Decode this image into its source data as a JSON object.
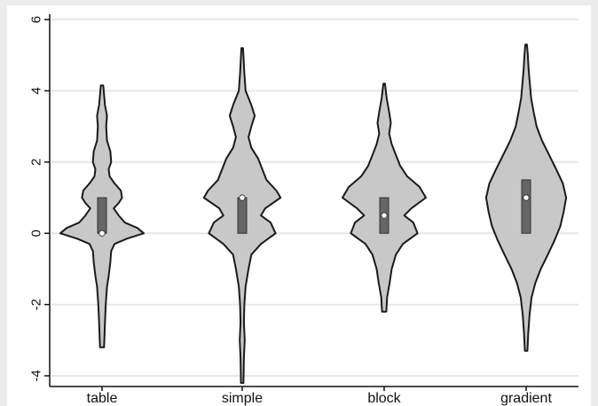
{
  "chart_data": {
    "type": "violin",
    "title": "",
    "xlabel": "",
    "ylabel": "",
    "ylim": [
      -4.3,
      6.3
    ],
    "yticks": [
      -4,
      -2,
      0,
      2,
      4,
      6
    ],
    "ytick_labels": [
      "-4",
      "-2",
      "0",
      "2",
      "4",
      "6"
    ],
    "grid": true,
    "categories": [
      "table",
      "simple",
      "block",
      "gradient"
    ],
    "colors": {
      "violin_fill": "#c8c8c8",
      "violin_stroke": "#1a1a1a",
      "box_fill": "#666666",
      "median_marker": "#ffffff",
      "grid": "#e6e6e6"
    },
    "box_stats": [
      {
        "q1": 0.0,
        "median": 0.0,
        "q3": 1.0
      },
      {
        "q1": 0.0,
        "median": 1.0,
        "q3": 1.0
      },
      {
        "q1": 0.0,
        "median": 0.5,
        "q3": 1.0
      },
      {
        "q1": 0.0,
        "median": 1.0,
        "q3": 1.5
      }
    ],
    "violins": [
      {
        "name": "table",
        "y_min": -3.2,
        "y_max": 4.15,
        "density": [
          [
            -3.2,
            0.05
          ],
          [
            -2.5,
            0.07
          ],
          [
            -2.0,
            0.09
          ],
          [
            -1.5,
            0.12
          ],
          [
            -1.2,
            0.16
          ],
          [
            -0.8,
            0.2
          ],
          [
            -0.5,
            0.22
          ],
          [
            -0.3,
            0.3
          ],
          [
            -0.15,
            0.6
          ],
          [
            0.0,
            1.0
          ],
          [
            0.15,
            0.85
          ],
          [
            0.3,
            0.55
          ],
          [
            0.5,
            0.4
          ],
          [
            0.7,
            0.28
          ],
          [
            0.85,
            0.4
          ],
          [
            1.0,
            0.48
          ],
          [
            1.2,
            0.45
          ],
          [
            1.4,
            0.3
          ],
          [
            1.6,
            0.18
          ],
          [
            1.8,
            0.16
          ],
          [
            2.0,
            0.22
          ],
          [
            2.3,
            0.2
          ],
          [
            2.6,
            0.12
          ],
          [
            3.0,
            0.1
          ],
          [
            3.3,
            0.12
          ],
          [
            3.6,
            0.07
          ],
          [
            4.15,
            0.03
          ]
        ]
      },
      {
        "name": "simple",
        "y_min": -4.2,
        "y_max": 5.2,
        "density": [
          [
            -4.2,
            0.03
          ],
          [
            -3.5,
            0.04
          ],
          [
            -3.0,
            0.06
          ],
          [
            -2.5,
            0.04
          ],
          [
            -2.0,
            0.05
          ],
          [
            -1.5,
            0.08
          ],
          [
            -1.0,
            0.15
          ],
          [
            -0.6,
            0.22
          ],
          [
            -0.3,
            0.45
          ],
          [
            0.0,
            0.8
          ],
          [
            0.3,
            0.68
          ],
          [
            0.5,
            0.45
          ],
          [
            0.7,
            0.55
          ],
          [
            1.0,
            0.92
          ],
          [
            1.2,
            0.82
          ],
          [
            1.5,
            0.58
          ],
          [
            1.8,
            0.48
          ],
          [
            2.1,
            0.38
          ],
          [
            2.4,
            0.22
          ],
          [
            2.7,
            0.15
          ],
          [
            3.0,
            0.22
          ],
          [
            3.3,
            0.3
          ],
          [
            3.6,
            0.22
          ],
          [
            4.0,
            0.08
          ],
          [
            4.5,
            0.05
          ],
          [
            5.2,
            0.02
          ]
        ]
      },
      {
        "name": "block",
        "y_min": -2.2,
        "y_max": 4.2,
        "density": [
          [
            -2.2,
            0.05
          ],
          [
            -1.8,
            0.07
          ],
          [
            -1.4,
            0.13
          ],
          [
            -1.0,
            0.18
          ],
          [
            -0.6,
            0.28
          ],
          [
            -0.3,
            0.45
          ],
          [
            0.0,
            0.8
          ],
          [
            0.3,
            0.7
          ],
          [
            0.5,
            0.48
          ],
          [
            0.7,
            0.65
          ],
          [
            1.0,
            1.0
          ],
          [
            1.3,
            0.85
          ],
          [
            1.6,
            0.55
          ],
          [
            1.9,
            0.38
          ],
          [
            2.2,
            0.28
          ],
          [
            2.5,
            0.18
          ],
          [
            2.8,
            0.12
          ],
          [
            3.1,
            0.16
          ],
          [
            3.4,
            0.12
          ],
          [
            3.8,
            0.06
          ],
          [
            4.2,
            0.02
          ]
        ]
      },
      {
        "name": "gradient",
        "y_min": -3.3,
        "y_max": 5.3,
        "density": [
          [
            -3.3,
            0.03
          ],
          [
            -2.8,
            0.05
          ],
          [
            -2.3,
            0.08
          ],
          [
            -1.8,
            0.13
          ],
          [
            -1.4,
            0.22
          ],
          [
            -1.0,
            0.35
          ],
          [
            -0.6,
            0.52
          ],
          [
            -0.2,
            0.68
          ],
          [
            0.2,
            0.82
          ],
          [
            0.6,
            0.9
          ],
          [
            1.0,
            0.96
          ],
          [
            1.4,
            0.88
          ],
          [
            1.8,
            0.72
          ],
          [
            2.2,
            0.55
          ],
          [
            2.6,
            0.38
          ],
          [
            3.0,
            0.25
          ],
          [
            3.4,
            0.18
          ],
          [
            3.8,
            0.12
          ],
          [
            4.2,
            0.09
          ],
          [
            4.6,
            0.06
          ],
          [
            5.0,
            0.04
          ],
          [
            5.3,
            0.02
          ]
        ]
      }
    ]
  }
}
